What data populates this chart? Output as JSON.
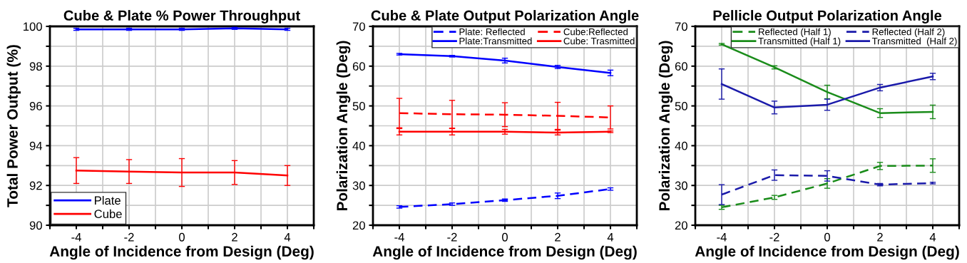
{
  "chart_data": [
    {
      "type": "line",
      "title": "Cube & Plate % Power Throughput",
      "xlabel": "Angle of Incidence from Design (Deg)",
      "ylabel": "Total Power Output (%)",
      "x": [
        -4,
        -2,
        0,
        2,
        4
      ],
      "xlim": [
        -5,
        5
      ],
      "xticks": [
        {
          "value": -5,
          "label": null
        },
        -4,
        {
          "value": -3,
          "label": null
        },
        -2,
        {
          "value": -1,
          "label": null
        },
        0,
        {
          "value": 1,
          "label": null
        },
        2,
        {
          "value": 3,
          "label": null
        },
        4,
        {
          "value": 5,
          "label": null
        }
      ],
      "ylim": [
        90,
        100
      ],
      "yticks": [
        90,
        {
          "value": 91,
          "label": null
        },
        92,
        {
          "value": 93,
          "label": null
        },
        94,
        {
          "value": 95,
          "label": null
        },
        96,
        {
          "value": 97,
          "label": null
        },
        98,
        {
          "value": 99,
          "label": null
        },
        100
      ],
      "grid": true,
      "legend": "bottom left",
      "marker": "none",
      "series": [
        {
          "name": "Plate",
          "color": "#0000ff",
          "line_style": "solid",
          "values": [
            99.85,
            99.85,
            99.85,
            99.9,
            99.85
          ],
          "errors": [
            0.05,
            0.05,
            0.05,
            0.05,
            0.05
          ]
        },
        {
          "name": "Cube",
          "color": "#ff0000",
          "line_style": "solid",
          "values": [
            92.75,
            92.7,
            92.65,
            92.65,
            92.5
          ],
          "errors": [
            0.65,
            0.6,
            0.7,
            0.6,
            0.5
          ]
        }
      ]
    },
    {
      "type": "line",
      "title": "Cube & Plate Output Polarization Angle",
      "xlabel": "Angle of Incidence from Design (Deg)",
      "ylabel": "Polarization Angle (Deg)",
      "x": [
        -4,
        -2,
        0,
        2,
        4
      ],
      "xlim": [
        -5,
        5
      ],
      "xticks": [
        {
          "value": -5,
          "label": null
        },
        -4,
        {
          "value": -3,
          "label": null
        },
        -2,
        {
          "value": -1,
          "label": null
        },
        0,
        {
          "value": 1,
          "label": null
        },
        2,
        {
          "value": 3,
          "label": null
        },
        4,
        {
          "value": 5,
          "label": null
        }
      ],
      "ylim": [
        20,
        70
      ],
      "yticks": [
        20,
        {
          "value": 25,
          "label": null
        },
        30,
        {
          "value": 35,
          "label": null
        },
        40,
        {
          "value": 45,
          "label": null
        },
        50,
        {
          "value": 55,
          "label": null
        },
        60,
        {
          "value": 65,
          "label": null
        },
        70
      ],
      "grid": true,
      "legend": "top right",
      "marker": "none",
      "series": [
        {
          "name": "Plate: Reflected",
          "color": "#0000ff",
          "line_style": "dashed",
          "values": [
            24.6,
            25.3,
            26.3,
            27.4,
            29.1
          ],
          "errors": [
            0.3,
            0.3,
            0.3,
            0.7,
            0.3
          ]
        },
        {
          "name": "Plate:Transmitted",
          "color": "#0000ff",
          "line_style": "solid",
          "values": [
            63,
            62.5,
            61.4,
            59.8,
            58.3
          ],
          "errors": [
            0.2,
            0.2,
            0.6,
            0.4,
            0.7
          ]
        },
        {
          "name": "Cube:Reflected",
          "color": "#ff0000",
          "line_style": "dashed",
          "values": [
            48.2,
            47.9,
            47.8,
            47.5,
            47.1
          ],
          "errors": [
            3.7,
            3.5,
            3,
            3.4,
            2.9
          ]
        },
        {
          "name": "Cube: Trasmitted",
          "color": "#ff0000",
          "line_style": "solid",
          "values": [
            43.5,
            43.5,
            43.5,
            43.3,
            43.5
          ],
          "errors": [
            0.8,
            0.8,
            0.6,
            0.6,
            0.2
          ]
        }
      ]
    },
    {
      "type": "line",
      "title": "Pellicle Output Polarization Angle",
      "xlabel": "Angle of Incidence from Design (Deg)",
      "ylabel": "Polarization Angle (Deg)",
      "x": [
        -4,
        -2,
        0,
        2,
        4
      ],
      "xlim": [
        -5,
        5
      ],
      "xticks": [
        {
          "value": -5,
          "label": null
        },
        -4,
        {
          "value": -3,
          "label": null
        },
        -2,
        {
          "value": -1,
          "label": null
        },
        0,
        {
          "value": 1,
          "label": null
        },
        2,
        {
          "value": 3,
          "label": null
        },
        4,
        {
          "value": 5,
          "label": null
        }
      ],
      "ylim": [
        20,
        70
      ],
      "yticks": [
        20,
        {
          "value": 25,
          "label": null
        },
        30,
        {
          "value": 35,
          "label": null
        },
        40,
        {
          "value": 45,
          "label": null
        },
        50,
        {
          "value": 55,
          "label": null
        },
        60,
        {
          "value": 65,
          "label": null
        },
        70
      ],
      "grid": true,
      "legend": "top right",
      "marker": "none",
      "series": [
        {
          "name": "Reflected (Half 1)",
          "color": "#1a8c1a",
          "line_style": "dashed",
          "values": [
            24.5,
            27,
            30.5,
            34.9,
            35
          ],
          "errors": [
            0.5,
            0.5,
            1.2,
            0.9,
            1.7
          ]
        },
        {
          "name": "Transmitted (Half 1)",
          "color": "#1a8c1a",
          "line_style": "solid",
          "values": [
            65.5,
            59.7,
            53.5,
            48.2,
            48.5
          ],
          "errors": [
            0.2,
            0.4,
            1.7,
            1.1,
            1.7
          ]
        },
        {
          "name": "Reflected (Half 2)",
          "color": "#1a1aaa",
          "line_style": "dashed",
          "values": [
            27.7,
            32.6,
            32.4,
            30.2,
            30.6
          ],
          "errors": [
            2.5,
            1.3,
            1.3,
            0.3,
            0.2
          ]
        },
        {
          "name": "Transmitted  (Half 2)",
          "color": "#1a1aaa",
          "line_style": "solid",
          "values": [
            55.5,
            49.6,
            50.3,
            54.6,
            57.4
          ],
          "errors": [
            3.8,
            1.6,
            1.4,
            0.8,
            0.8
          ]
        }
      ]
    }
  ]
}
